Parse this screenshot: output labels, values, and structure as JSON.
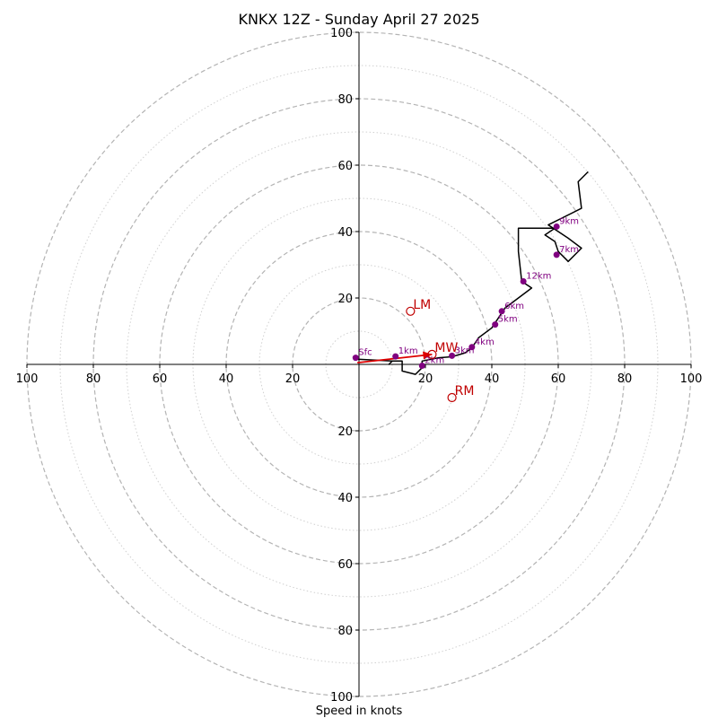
{
  "chart_data": {
    "type": "hodograph",
    "title": "KNKX 12Z - Sunday April 27 2025",
    "xlabel": "Speed in knots",
    "units": "knots",
    "range": [
      -100,
      100
    ],
    "rings_major": [
      20,
      40,
      60,
      80,
      100
    ],
    "rings_minor": [
      10,
      30,
      50,
      70,
      90
    ],
    "tick_labels": {
      "x_left": [
        "100",
        "80",
        "60",
        "40",
        "20"
      ],
      "x_right": [
        "20",
        "40",
        "60",
        "80",
        "100"
      ],
      "y_top": [
        "100",
        "80",
        "60",
        "40",
        "20"
      ],
      "y_bottom": [
        "20",
        "40",
        "60",
        "80",
        "100"
      ]
    },
    "trace": {
      "color": "#000000",
      "points": [
        [
          -1,
          1.6
        ],
        [
          10,
          1
        ],
        [
          9,
          0
        ],
        [
          10,
          1
        ],
        [
          13,
          1
        ],
        [
          13,
          -2
        ],
        [
          17,
          -3
        ],
        [
          19,
          -1
        ],
        [
          19,
          1
        ],
        [
          24,
          2
        ],
        [
          28,
          2.3
        ],
        [
          32,
          3.5
        ],
        [
          34,
          5
        ],
        [
          36,
          8
        ],
        [
          40,
          11
        ],
        [
          44,
          17
        ],
        [
          52,
          23
        ],
        [
          49,
          25
        ],
        [
          48,
          34
        ],
        [
          48,
          41
        ],
        [
          59,
          41
        ],
        [
          56,
          39
        ],
        [
          59,
          37
        ],
        [
          60,
          34
        ],
        [
          63,
          31
        ],
        [
          67,
          35
        ],
        [
          63,
          38
        ],
        [
          60,
          40
        ],
        [
          57,
          42
        ],
        [
          67,
          47
        ],
        [
          66,
          55
        ],
        [
          69,
          58
        ]
      ]
    },
    "levels": [
      {
        "label": "Sfc",
        "u": -1,
        "v": 2
      },
      {
        "label": "1km",
        "u": 11,
        "v": 2.4
      },
      {
        "label": "2km",
        "u": 19,
        "v": -0.4
      },
      {
        "label": "3km",
        "u": 28,
        "v": 2.6
      },
      {
        "label": "4km",
        "u": 34,
        "v": 5.2
      },
      {
        "label": "5km",
        "u": 41,
        "v": 12
      },
      {
        "label": "6km",
        "u": 43,
        "v": 16
      },
      {
        "label": "7km",
        "u": 59.5,
        "v": 33
      },
      {
        "label": "9km",
        "u": 59.5,
        "v": 41.5
      },
      {
        "label": "12km",
        "u": 49.5,
        "v": 25
      }
    ],
    "storm_motions": [
      {
        "label": "LM",
        "u": 15.5,
        "v": 16
      },
      {
        "label": "MW",
        "u": 22,
        "v": 3
      },
      {
        "label": "RM",
        "u": 28,
        "v": -10
      }
    ],
    "mean_wind_arrow": {
      "from": [
        -0.5,
        0.5
      ],
      "to": [
        22,
        3
      ],
      "color": "#dd0000"
    },
    "colors": {
      "trace": "#000000",
      "levels": "#800080",
      "motion": "#c00000",
      "arrow": "#dd0000",
      "ring": "#b4b4b4"
    }
  }
}
